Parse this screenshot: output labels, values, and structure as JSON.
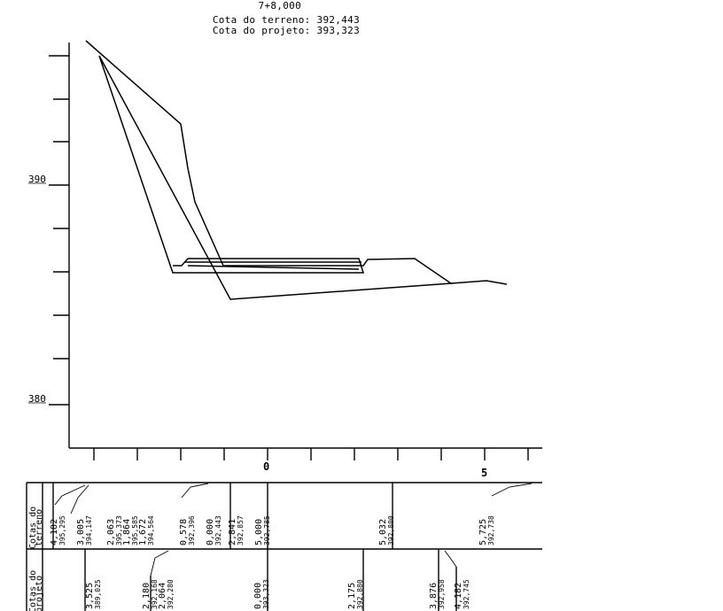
{
  "header": {
    "station": "7+8,000",
    "terrain_label": "Cota do terreno:",
    "terrain_value": "392,443",
    "project_label": "Cota do projeto:",
    "project_value": "393,323"
  },
  "y_axis": {
    "labels": [
      "390",
      "380"
    ]
  },
  "x_axis": {
    "labels": [
      "0",
      "5"
    ]
  },
  "table": {
    "row1_title_a": "Cotas do",
    "row1_title_b": "terreno",
    "row2_title_a": "Cotas do",
    "row2_title_b": "projeto",
    "row1_columns": [
      [
        "4,182",
        "395,295"
      ],
      [
        "3,005",
        "394,147"
      ],
      [
        "2,063",
        "395,373",
        "1,864",
        "395,585"
      ],
      [
        "1,672",
        "394,564"
      ],
      [
        "0,578",
        "392,396"
      ],
      [
        "0,000",
        "392,443"
      ],
      [
        "2,841",
        "392,857"
      ],
      [
        "5,000",
        "392,785"
      ],
      [
        "5,032",
        "392,800"
      ],
      [
        "5,725",
        "392,738"
      ]
    ],
    "row2_columns": [
      [
        "3,525",
        "389,025"
      ],
      [
        "2,180",
        "392,168",
        "2,064",
        "392,280"
      ],
      [
        "0,000",
        "393,323"
      ],
      [
        "2,175",
        "392,880"
      ],
      [
        "3,876",
        "392,958"
      ],
      [
        "4,182",
        "392,745"
      ]
    ]
  }
}
